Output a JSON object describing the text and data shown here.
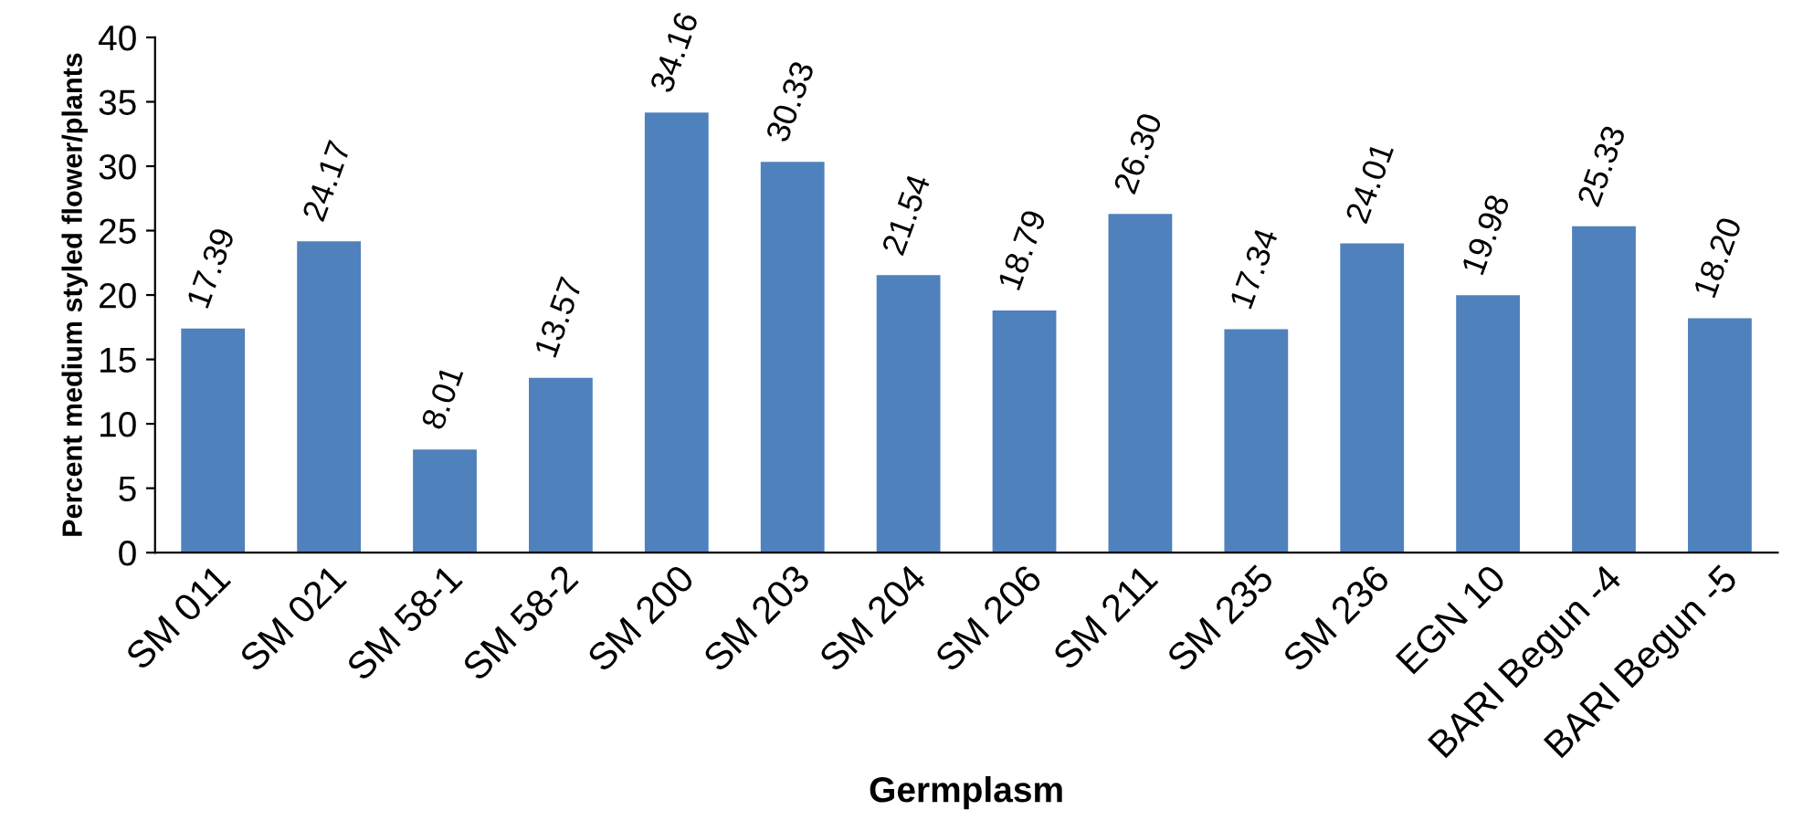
{
  "chart_data": {
    "type": "bar",
    "xlabel": "Germplasm",
    "ylabel": "Percent medium styled flower/plants",
    "categories": [
      "SM 011",
      "SM 021",
      "SM 58-1",
      "SM 58-2",
      "SM 200",
      "SM 203",
      "SM 204",
      "SM 206",
      "SM 211",
      "SM 235",
      "SM 236",
      "EGN 10",
      "BARI Begun -4",
      "BARI Begun -5"
    ],
    "values": [
      17.39,
      24.17,
      8.01,
      13.57,
      34.16,
      30.33,
      21.54,
      18.79,
      26.3,
      17.34,
      24.01,
      19.98,
      25.33,
      18.2
    ],
    "value_labels": [
      "17.39",
      "24.17",
      "8.01",
      "13.57",
      "34.16",
      "30.33",
      "21.54",
      "18.79",
      "26.30",
      "17.34",
      "24.01",
      "19.98",
      "25.33",
      "18.20"
    ],
    "color": "#4f81bd",
    "ylim": [
      0,
      40
    ],
    "yticks": [
      0,
      5,
      10,
      15,
      20,
      25,
      30,
      35,
      40
    ],
    "grid": false,
    "legend": false
  }
}
